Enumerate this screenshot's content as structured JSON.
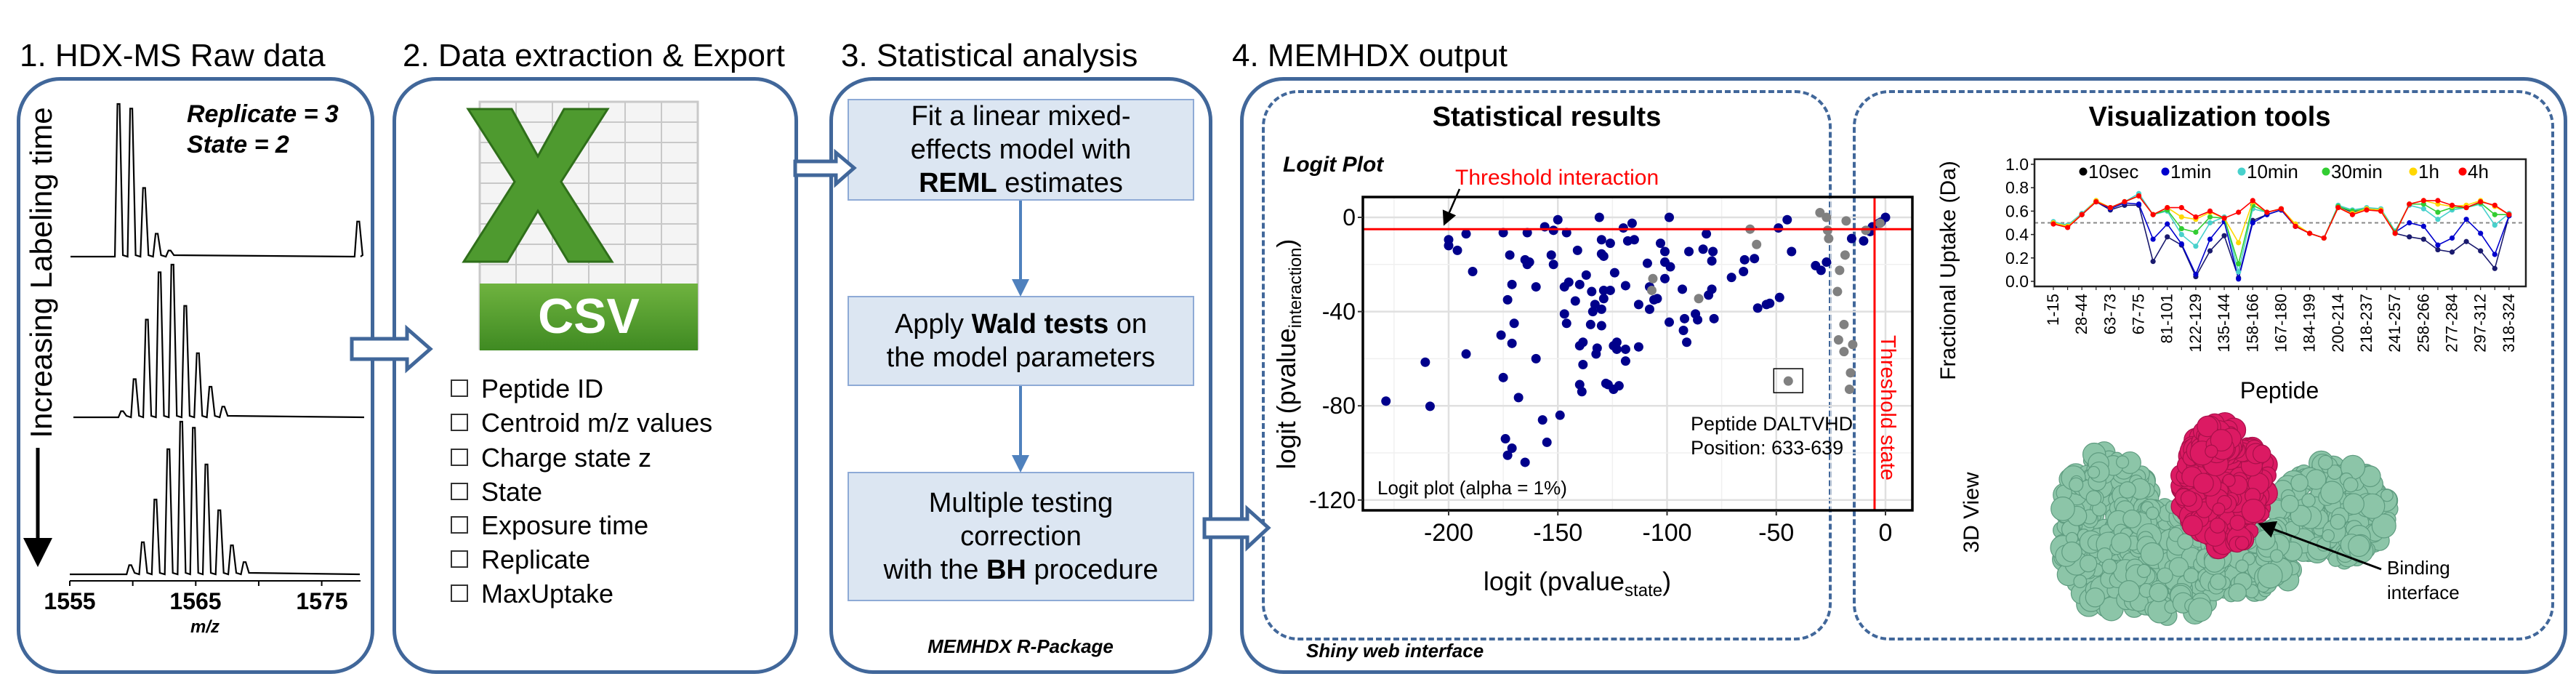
{
  "steps": {
    "s1": "1. HDX-MS Raw data",
    "s2": "2. Data extraction & Export",
    "s3": "3. Statistical analysis",
    "s4": "4. MEMHDX output"
  },
  "raw_data": {
    "replicate": "Replicate = 3",
    "state": "State = 2",
    "time_label": "Increasing Labeling time",
    "xlabel": "m/z",
    "x_ticks": [
      "1555",
      "1565",
      "1575"
    ],
    "spectra": [
      {
        "peaks_mz": [
          1558.87,
          1559.88,
          1560.9,
          1561.9,
          1562.92,
          1577.9
        ],
        "intensity": [
          100,
          97,
          45,
          15,
          4,
          23
        ]
      },
      {
        "peaks_mz": [
          1559.15,
          1560.15,
          1561.12,
          1562.13,
          1563.15,
          1564.17,
          1565.17,
          1566.17,
          1567.19
        ],
        "intensity": [
          4,
          25,
          64,
          95,
          100,
          73,
          42,
          20,
          7
        ]
      },
      {
        "peaks_mz": [
          1559.8,
          1560.8,
          1561.8,
          1562.83,
          1563.85,
          1564.85,
          1565.85,
          1566.87,
          1567.87,
          1568.88
        ],
        "intensity": [
          6,
          21,
          49,
          82,
          100,
          96,
          72,
          42,
          19,
          8
        ]
      }
    ]
  },
  "export": {
    "icon_text": "CSV",
    "fields": [
      "Peptide ID",
      "Centroid m/z values",
      "Charge state z",
      "State",
      "Exposure time",
      "Replicate",
      "MaxUptake"
    ]
  },
  "stats": {
    "box1": {
      "l1": "Fit a linear mixed-",
      "l2": "effects model with",
      "l3_bold": "REML",
      "l3": " estimates"
    },
    "box2": {
      "l1a": "Apply ",
      "l1_bold": "Wald tests",
      "l1b": " on",
      "l2": "the model parameters"
    },
    "box3": {
      "l1": "Multiple testing",
      "l2": "correction",
      "l3a": "with the ",
      "l3_bold": "BH",
      "l3b": " procedure"
    },
    "footer": "MEMHDX R-Package"
  },
  "output": {
    "footer": "Shiny web interface",
    "stat_title": "Statistical results",
    "vis_title": "Visualization tools",
    "view3d_label": "3D View",
    "binding_label_1": "Binding",
    "binding_label_2": "interface",
    "colors": {
      "protein": "#8cc5a8",
      "interface": "#dc1a63"
    }
  },
  "chart_data": [
    {
      "type": "scatter",
      "title": "Logit Plot",
      "xlabel": "logit (pvalue",
      "xlabel_sub": "state",
      "ylabel": "logit (pvalue",
      "ylabel_sub": "interaction",
      "xlim": [
        -239,
        12
      ],
      "ylim": [
        -124,
        8.5
      ],
      "x_ticks": [
        -200,
        -150,
        -100,
        -50,
        0
      ],
      "y_ticks": [
        0,
        -40,
        -80,
        -120
      ],
      "grid": true,
      "threshold_interaction": -5,
      "threshold_state": -5,
      "threshold_interaction_label": "Threshold interaction",
      "threshold_state_label": "Threshold state",
      "annotation_1": "Peptide DALTVHD",
      "annotation_2": "Position: 633-639",
      "highlight_point": [
        -44.5,
        -69.5
      ],
      "footnote": "Logit plot (alpha = 1%)",
      "colors": {
        "significant": "#00008b",
        "non_significant": "#808080",
        "threshold": "#ff0000"
      },
      "series": [
        {
          "group": "significant",
          "points": [
            [
              -228.7,
              -78
            ],
            [
              -210.7,
              -61.5
            ],
            [
              -208.5,
              -80.2
            ],
            [
              -200,
              -9.5
            ],
            [
              -200,
              -12
            ],
            [
              -196,
              -14
            ],
            [
              -192,
              -7
            ],
            [
              -189,
              -23
            ],
            [
              -192,
              -58
            ],
            [
              -176,
              -50
            ],
            [
              -175,
              -68
            ],
            [
              -175,
              -6.5
            ],
            [
              -174,
              -94
            ],
            [
              -173,
              -101
            ],
            [
              -171,
              -98
            ],
            [
              -173,
              -35
            ],
            [
              -172,
              -16
            ],
            [
              -171,
              -53.5
            ],
            [
              -171,
              -28.5
            ],
            [
              -170,
              -45
            ],
            [
              -168,
              -76.5
            ],
            [
              -165,
              -104
            ],
            [
              -165,
              -18
            ],
            [
              -164,
              -6.5
            ],
            [
              -164,
              -20
            ],
            [
              -163,
              -19
            ],
            [
              -160,
              -29.5
            ],
            [
              -160,
              -60
            ],
            [
              -157,
              -86
            ],
            [
              -156,
              -4
            ],
            [
              -155,
              -95.5
            ],
            [
              -153,
              -16
            ],
            [
              -152,
              -20
            ],
            [
              -152,
              -5.5
            ],
            [
              -150,
              -1
            ],
            [
              -149,
              -84
            ],
            [
              -147,
              -29.5
            ],
            [
              -147,
              -41
            ],
            [
              -146,
              -6.5
            ],
            [
              -146,
              -45
            ],
            [
              -145,
              -27.5
            ],
            [
              -142,
              -35.5
            ],
            [
              -141,
              -14
            ],
            [
              -140,
              -54.5
            ],
            [
              -140,
              -28.5
            ],
            [
              -140,
              -71
            ],
            [
              -139,
              -74
            ],
            [
              -138.5,
              -62.5
            ],
            [
              -138.5,
              -53
            ],
            [
              -137,
              -24.5
            ],
            [
              -135,
              -45.5
            ],
            [
              -134.5,
              -31.5
            ],
            [
              -134,
              -40
            ],
            [
              -133,
              -37
            ],
            [
              -132.5,
              -58
            ],
            [
              -132,
              -55.5
            ],
            [
              -131,
              0
            ],
            [
              -130,
              -9.5
            ],
            [
              -130,
              -39
            ],
            [
              -130,
              -15.5
            ],
            [
              -130,
              -46
            ],
            [
              -129,
              -16.5
            ],
            [
              -129,
              -34.5
            ],
            [
              -129,
              -31
            ],
            [
              -128,
              -70.5
            ],
            [
              -127,
              -71
            ],
            [
              -126,
              -11
            ],
            [
              -126,
              -31
            ],
            [
              -124.5,
              -73
            ],
            [
              -124.5,
              -54.5
            ],
            [
              -124,
              -23.5
            ],
            [
              -123,
              -53
            ],
            [
              -123,
              -56
            ],
            [
              -122,
              -71.5
            ],
            [
              -120,
              -4.5
            ],
            [
              -119,
              -29
            ],
            [
              -119,
              -61
            ],
            [
              -119,
              -56
            ],
            [
              -118,
              -10
            ],
            [
              -116,
              -2.5
            ],
            [
              -115,
              -9.5
            ],
            [
              -113,
              -37
            ],
            [
              -113,
              -55
            ],
            [
              -109,
              -19.5
            ],
            [
              -108,
              -29.5
            ],
            [
              -108,
              -39
            ],
            [
              -106,
              -35
            ],
            [
              -104.5,
              -34.5
            ],
            [
              -103,
              -11
            ],
            [
              -101,
              -26
            ],
            [
              -101,
              -14.5
            ],
            [
              -101,
              -19
            ],
            [
              -99,
              0
            ],
            [
              -99,
              -44.5
            ],
            [
              -98.5,
              -21
            ],
            [
              -93,
              -30.5
            ],
            [
              -92.5,
              -48
            ],
            [
              -92,
              -43
            ],
            [
              -91,
              -53
            ],
            [
              -90,
              -14.5
            ],
            [
              -87,
              -41
            ],
            [
              -86,
              -43.5
            ],
            [
              -83.5,
              -13.5
            ],
            [
              -82,
              -7
            ],
            [
              -81,
              -33
            ],
            [
              -79.5,
              -30.5
            ],
            [
              -79.5,
              -18.5
            ],
            [
              -79,
              -14.5
            ],
            [
              -78.5,
              -43
            ],
            [
              -70.5,
              -25.5
            ],
            [
              -65,
              -23
            ],
            [
              -64.5,
              -18
            ],
            [
              -60,
              -17.5
            ],
            [
              -58.5,
              -38.5
            ],
            [
              -54.5,
              -37
            ],
            [
              -53,
              -36.5
            ],
            [
              -49,
              -4.5
            ],
            [
              -48.5,
              -34
            ],
            [
              -45,
              -1
            ],
            [
              -43,
              -14.5
            ],
            [
              -32,
              -20.5
            ],
            [
              -29.5,
              -22.5
            ],
            [
              -27,
              -19
            ],
            [
              -15.5,
              -9
            ],
            [
              -10,
              -10
            ],
            [
              -7,
              -6
            ],
            [
              -6,
              -4
            ],
            [
              -3,
              -2.5
            ],
            [
              -2,
              -2
            ],
            [
              0,
              0
            ]
          ]
        },
        {
          "group": "non_significant",
          "points": [
            [
              -30,
              2
            ],
            [
              -27,
              0
            ],
            [
              -26.5,
              -5.5
            ],
            [
              -26,
              -9
            ],
            [
              -18,
              -1.5
            ],
            [
              -18.5,
              -16
            ],
            [
              -21,
              -22.5
            ],
            [
              -22,
              -31.5
            ],
            [
              -19,
              -45.5
            ],
            [
              -21.5,
              -52
            ],
            [
              -19,
              -57
            ],
            [
              -15,
              -54
            ],
            [
              -16,
              -66
            ],
            [
              -16.5,
              -73
            ],
            [
              -62,
              -5
            ],
            [
              -59,
              -11.5
            ],
            [
              -106.5,
              -26
            ],
            [
              -107,
              -31
            ],
            [
              -85.5,
              -34.5
            ],
            [
              -44.5,
              -69.5
            ],
            [
              -9,
              -5.5
            ],
            [
              -2.5,
              -2.5
            ]
          ]
        }
      ]
    },
    {
      "type": "line",
      "xlabel": "Peptide",
      "ylabel": "Fractional Uptake (Da)",
      "ylim": [
        0,
        1.0
      ],
      "y_ticks": [
        "0.0",
        "0.2",
        "0.4",
        "0.6",
        "0.8",
        "1.0"
      ],
      "reference_line": 0.5,
      "legend_position": "top",
      "categories": [
        "1-15",
        "",
        "28-44",
        "",
        "63-73",
        "",
        "67-75",
        "",
        "81-101",
        "",
        "122-129",
        "",
        "135-144",
        "",
        "158-166",
        "",
        "167-180",
        "",
        "184-199",
        "",
        "200-214",
        "",
        "218-237",
        "",
        "241-257",
        "",
        "258-266",
        "",
        "277-284",
        "",
        "297-312",
        "",
        "318-324"
      ],
      "series": [
        {
          "name": "10sec",
          "color": "#1a1a6e",
          "values": [
            0.5,
            0.47,
            0.57,
            0.68,
            0.61,
            0.65,
            0.65,
            0.17,
            0.38,
            0.31,
            0.04,
            0.26,
            0.39,
            0.03,
            0.52,
            0.57,
            0.61,
            0.47,
            0.41,
            0.37,
            0.64,
            0.59,
            0.62,
            0.61,
            0.41,
            0.38,
            0.36,
            0.27,
            0.25,
            0.34,
            0.26,
            0.11,
            0.56
          ]
        },
        {
          "name": "1min",
          "color": "#0000cd",
          "values": [
            0.5,
            0.47,
            0.57,
            0.68,
            0.62,
            0.67,
            0.66,
            0.36,
            0.49,
            0.32,
            0.06,
            0.36,
            0.51,
            0.02,
            0.5,
            0.57,
            0.61,
            0.47,
            0.41,
            0.37,
            0.64,
            0.59,
            0.62,
            0.61,
            0.42,
            0.5,
            0.47,
            0.31,
            0.37,
            0.53,
            0.41,
            0.23,
            0.56
          ]
        },
        {
          "name": "10min",
          "color": "#48d1cc",
          "values": [
            0.51,
            0.48,
            0.58,
            0.69,
            0.63,
            0.68,
            0.75,
            0.57,
            0.6,
            0.4,
            0.3,
            0.5,
            0.55,
            0.08,
            0.62,
            0.59,
            0.62,
            0.48,
            0.41,
            0.37,
            0.65,
            0.61,
            0.63,
            0.62,
            0.43,
            0.65,
            0.62,
            0.53,
            0.61,
            0.63,
            0.66,
            0.48,
            0.58
          ]
        },
        {
          "name": "30min",
          "color": "#32cd32",
          "values": [
            0.5,
            0.47,
            0.57,
            0.68,
            0.63,
            0.68,
            0.73,
            0.57,
            0.61,
            0.45,
            0.42,
            0.55,
            0.54,
            0.15,
            0.65,
            0.59,
            0.62,
            0.48,
            0.41,
            0.37,
            0.64,
            0.6,
            0.62,
            0.61,
            0.42,
            0.66,
            0.66,
            0.59,
            0.63,
            0.63,
            0.67,
            0.57,
            0.57
          ]
        },
        {
          "name": "1h",
          "color": "#ffd700",
          "values": [
            0.5,
            0.47,
            0.57,
            0.69,
            0.63,
            0.68,
            0.73,
            0.57,
            0.63,
            0.55,
            0.53,
            0.59,
            0.54,
            0.33,
            0.68,
            0.59,
            0.62,
            0.49,
            0.41,
            0.37,
            0.63,
            0.58,
            0.62,
            0.61,
            0.41,
            0.66,
            0.69,
            0.66,
            0.64,
            0.65,
            0.69,
            0.64,
            0.57
          ]
        },
        {
          "name": "4h",
          "color": "#ff0000",
          "values": [
            0.49,
            0.46,
            0.57,
            0.68,
            0.63,
            0.68,
            0.73,
            0.57,
            0.63,
            0.63,
            0.55,
            0.6,
            0.54,
            0.59,
            0.69,
            0.59,
            0.62,
            0.47,
            0.41,
            0.37,
            0.63,
            0.57,
            0.61,
            0.6,
            0.41,
            0.66,
            0.69,
            0.69,
            0.65,
            0.63,
            0.68,
            0.65,
            0.57
          ]
        }
      ]
    }
  ]
}
